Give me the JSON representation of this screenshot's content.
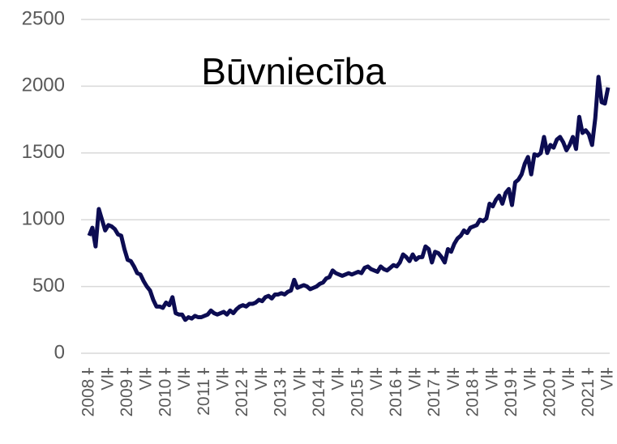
{
  "chart_data": {
    "type": "line",
    "title": "Būvniecība",
    "categories": [
      "2008 I",
      null,
      null,
      null,
      null,
      null,
      "VII",
      null,
      null,
      null,
      null,
      null,
      "2009 I",
      null,
      null,
      null,
      null,
      null,
      "VII",
      null,
      null,
      null,
      null,
      null,
      "2010 I",
      null,
      null,
      null,
      null,
      null,
      "VII",
      null,
      null,
      null,
      null,
      null,
      "2011 I",
      null,
      null,
      null,
      null,
      null,
      "VII",
      null,
      null,
      null,
      null,
      null,
      "2012 I",
      null,
      null,
      null,
      null,
      null,
      "VII",
      null,
      null,
      null,
      null,
      null,
      "2013 I",
      null,
      null,
      null,
      null,
      null,
      "VII",
      null,
      null,
      null,
      null,
      null,
      "2014 I",
      null,
      null,
      null,
      null,
      null,
      "VII",
      null,
      null,
      null,
      null,
      null,
      "2015 I",
      null,
      null,
      null,
      null,
      null,
      "VII",
      null,
      null,
      null,
      null,
      null,
      "2016 I",
      null,
      null,
      null,
      null,
      null,
      "VII",
      null,
      null,
      null,
      null,
      null,
      "2017 I",
      null,
      null,
      null,
      null,
      null,
      "VII",
      null,
      null,
      null,
      null,
      null,
      "2018 I",
      null,
      null,
      null,
      null,
      null,
      "VII",
      null,
      null,
      null,
      null,
      null,
      "2019 I",
      null,
      null,
      null,
      null,
      null,
      "VII",
      null,
      null,
      null,
      null,
      null,
      "2020 I",
      null,
      null,
      null,
      null,
      null,
      "VII",
      null,
      null,
      null,
      null,
      null,
      "2021 I",
      null,
      null,
      null,
      null,
      null,
      "VII"
    ],
    "values": [
      880,
      940,
      800,
      1080,
      1000,
      920,
      960,
      950,
      930,
      890,
      880,
      780,
      700,
      690,
      650,
      600,
      590,
      540,
      500,
      470,
      400,
      350,
      350,
      340,
      380,
      360,
      420,
      300,
      290,
      290,
      250,
      270,
      260,
      280,
      270,
      270,
      280,
      290,
      320,
      300,
      290,
      300,
      310,
      290,
      320,
      300,
      330,
      350,
      360,
      350,
      370,
      370,
      380,
      400,
      390,
      420,
      430,
      410,
      440,
      440,
      450,
      440,
      460,
      470,
      550,
      490,
      500,
      510,
      500,
      480,
      490,
      500,
      520,
      530,
      560,
      570,
      620,
      600,
      590,
      580,
      590,
      600,
      590,
      600,
      610,
      600,
      640,
      650,
      630,
      620,
      610,
      650,
      630,
      620,
      640,
      660,
      650,
      680,
      740,
      720,
      690,
      740,
      700,
      720,
      720,
      800,
      780,
      680,
      760,
      750,
      720,
      680,
      780,
      760,
      820,
      860,
      880,
      920,
      900,
      940,
      950,
      960,
      1000,
      990,
      1010,
      1120,
      1100,
      1150,
      1180,
      1120,
      1200,
      1230,
      1110,
      1280,
      1300,
      1340,
      1420,
      1470,
      1340,
      1490,
      1480,
      1500,
      1620,
      1500,
      1560,
      1540,
      1600,
      1620,
      1580,
      1520,
      1560,
      1620,
      1530,
      1770,
      1650,
      1670,
      1640,
      1560,
      1760,
      2070,
      1880,
      1870,
      1990
    ],
    "color": "#0c0c52",
    "ylim": [
      0,
      2500
    ],
    "yticks": [
      0,
      500,
      1000,
      1500,
      2000,
      2500
    ],
    "grid": true
  }
}
